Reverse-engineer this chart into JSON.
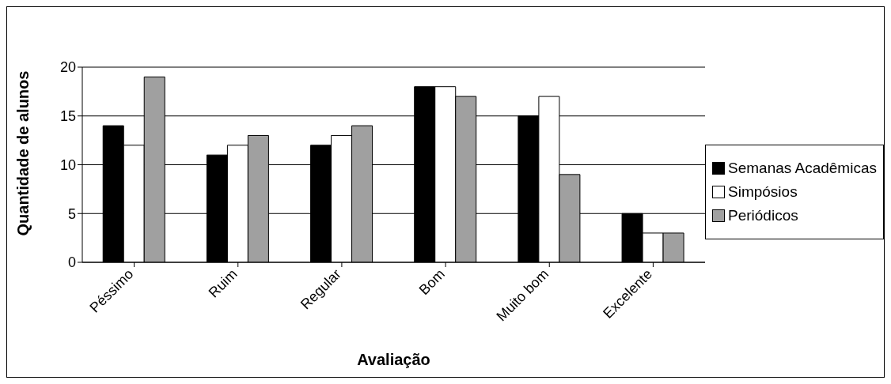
{
  "chart_data": {
    "type": "bar",
    "xlabel": "Avaliação",
    "ylabel": "Quantidade de alunos",
    "categories": [
      "Péssimo",
      "Ruim",
      "Regular",
      "Bom",
      "Muito bom",
      "Excelente"
    ],
    "series": [
      {
        "name": "Semanas Acadêmicas",
        "color": "#000000",
        "values": [
          14,
          11,
          12,
          18,
          15,
          5
        ]
      },
      {
        "name": "Simpósios",
        "color": "#ffffff",
        "values": [
          12,
          12,
          13,
          18,
          17,
          3
        ]
      },
      {
        "name": "Periódicos",
        "color": "#a0a0a0",
        "values": [
          19,
          13,
          14,
          17,
          9,
          3
        ]
      }
    ],
    "ylim": [
      0,
      20
    ],
    "yticks": [
      0,
      5,
      10,
      15,
      20
    ],
    "grid": "y",
    "legend": "right"
  }
}
